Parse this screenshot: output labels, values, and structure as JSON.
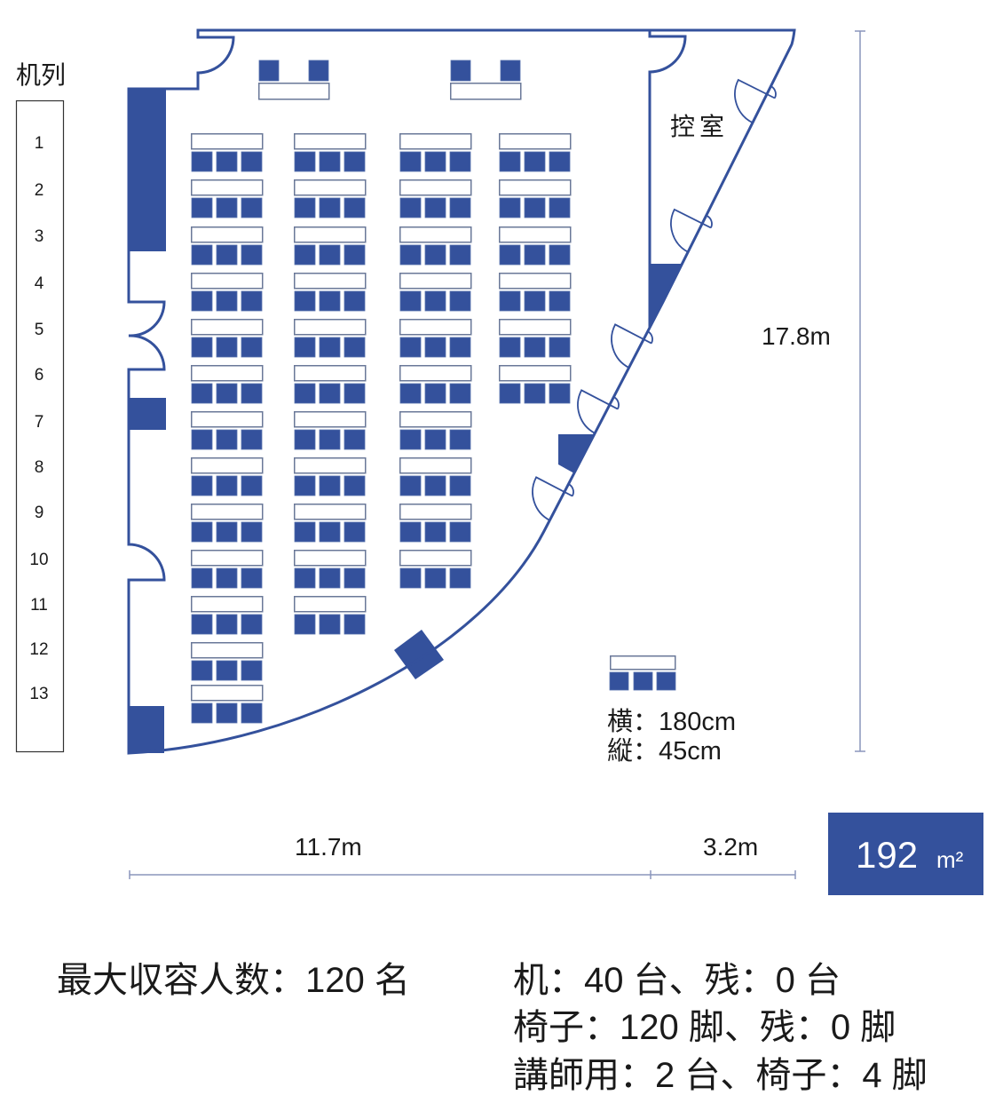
{
  "row_label_panel": {
    "title": "机列",
    "rows": [
      "1",
      "2",
      "3",
      "4",
      "5",
      "6",
      "7",
      "8",
      "9",
      "10",
      "11",
      "12",
      "13"
    ]
  },
  "rooms": {
    "control_room_label": "控室"
  },
  "dimensions": {
    "height": "17.8m",
    "width_main": "11.7m",
    "width_extra": "3.2m"
  },
  "area": {
    "value": "192",
    "unit": "m²"
  },
  "legend": {
    "width": "横：180cm",
    "depth": "縦：45cm"
  },
  "summary": {
    "max_capacity": "最大収容人数：120 名",
    "desks": "机：40 台、残：0 台",
    "chairs": "椅子：120 脚、残：0 脚",
    "lecturer": "講師用：2 台、椅子：4 脚"
  },
  "layout": {
    "columns": [
      {
        "rows": 13
      },
      {
        "rows": 11
      },
      {
        "rows": 10
      },
      {
        "rows": 6
      }
    ],
    "chairs_per_desk": 3,
    "lecturer_desks": 2,
    "chairs_per_lecturer_desk": 2
  },
  "colors": {
    "primary": "#34519c",
    "desk_outline": "#6a7898",
    "dimension_line": "#8a96bc"
  }
}
